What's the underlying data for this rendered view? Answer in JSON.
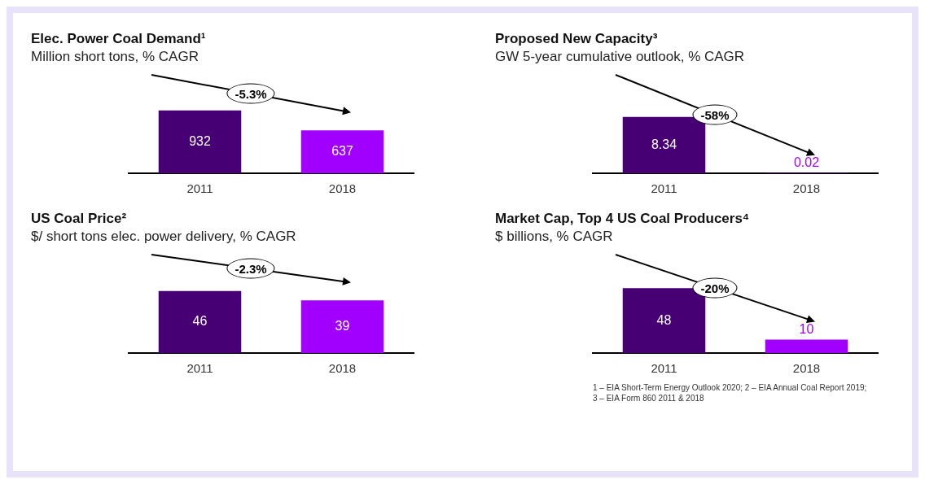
{
  "chart_data": [
    {
      "type": "bar",
      "title": "Elec. Power Coal Demand¹",
      "subtitle": "Million short tons, % CAGR",
      "categories": [
        "2011",
        "2018"
      ],
      "values": [
        932,
        637
      ],
      "colors": [
        "#460073",
        "#a100ff"
      ],
      "data_labels": true,
      "annotations": [
        "-5.3%"
      ]
    },
    {
      "type": "bar",
      "title": "Proposed New Capacity³",
      "subtitle": "GW 5-year cumulative outlook, % CAGR",
      "categories": [
        "2011",
        "2018"
      ],
      "values": [
        8.34,
        0.02
      ],
      "colors": [
        "#460073",
        "#a100ff"
      ],
      "data_labels": true,
      "annotations": [
        "-58%"
      ]
    },
    {
      "type": "bar",
      "title": "US Coal Price²",
      "subtitle": "$/ short tons elec. power delivery, % CAGR",
      "categories": [
        "2011",
        "2018"
      ],
      "values": [
        46,
        39
      ],
      "colors": [
        "#460073",
        "#a100ff"
      ],
      "data_labels": true,
      "annotations": [
        "-2.3%"
      ]
    },
    {
      "type": "bar",
      "title": "Market Cap, Top 4 US Coal Producers⁴",
      "subtitle": "$ billions, % CAGR",
      "categories": [
        "2011",
        "2018"
      ],
      "values": [
        48,
        10
      ],
      "colors": [
        "#460073",
        "#a100ff"
      ],
      "data_labels": true,
      "annotations": [
        "-20%",
        "1 – EIA Short-Term Energy Outlook 2020; 2 – EIA Annual Coal Report 2019; 3 – EIA Form 860 2011 & 2018"
      ]
    }
  ]
}
